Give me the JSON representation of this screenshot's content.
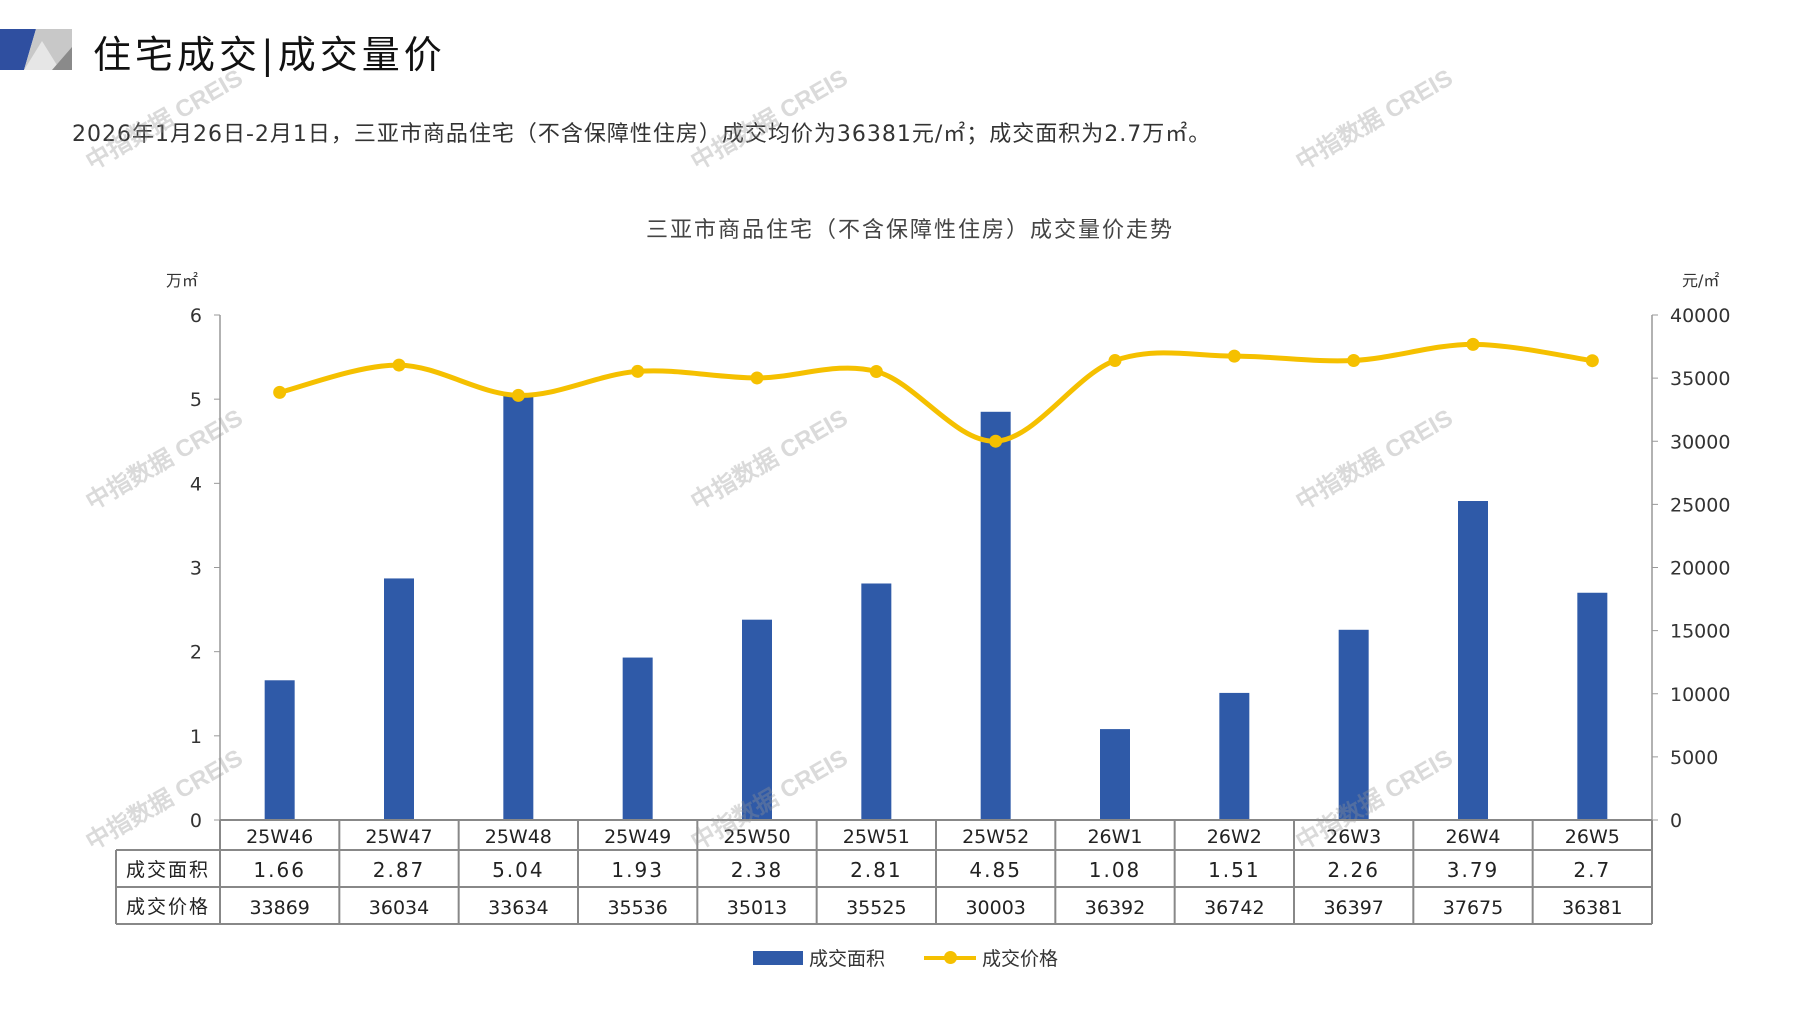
{
  "header": {
    "title": "住宅成交|成交量价",
    "summary": "2026年1月26日-2月1日，三亚市商品住宅（不含保障性住房）成交均价为36381元/㎡；成交面积为2.7万㎡。"
  },
  "watermark": "中指数据 CREIS",
  "colors": {
    "bar": "#2F5AA8",
    "line": "#F5C000"
  },
  "chart_data": {
    "type": "bar+line",
    "title": "三亚市商品住宅（不含保障性住房）成交量价走势",
    "categories": [
      "25W46",
      "25W47",
      "25W48",
      "25W49",
      "25W50",
      "25W51",
      "25W52",
      "26W1",
      "26W2",
      "26W3",
      "26W4",
      "26W5"
    ],
    "series": [
      {
        "name": "成交面积",
        "type": "bar",
        "axis": "left",
        "values": [
          1.66,
          2.87,
          5.04,
          1.93,
          2.38,
          2.81,
          4.85,
          1.08,
          1.51,
          2.26,
          3.79,
          2.7
        ],
        "labels": [
          "1.66",
          "2.87",
          "5.04",
          "1.93",
          "2.38",
          "2.81",
          "4.85",
          "1.08",
          "1.51",
          "2.26",
          "3.79",
          "2.7"
        ]
      },
      {
        "name": "成交价格",
        "type": "line",
        "axis": "right",
        "values": [
          33869,
          36034,
          33634,
          35536,
          35013,
          35525,
          30003,
          36392,
          36742,
          36397,
          37675,
          36381
        ]
      }
    ],
    "ylabel_left": "万㎡",
    "ylabel_right": "元/㎡",
    "ylim_left": [
      0,
      6
    ],
    "yticks_left": [
      "0",
      "1",
      "2",
      "3",
      "4",
      "5",
      "6"
    ],
    "ylim_right": [
      0,
      40000
    ],
    "yticks_right": [
      "0",
      "5000",
      "10000",
      "15000",
      "20000",
      "25000",
      "30000",
      "35000",
      "40000"
    ],
    "table_row_labels": [
      "成交面积",
      "成交价格"
    ],
    "legend_position": "bottom"
  }
}
